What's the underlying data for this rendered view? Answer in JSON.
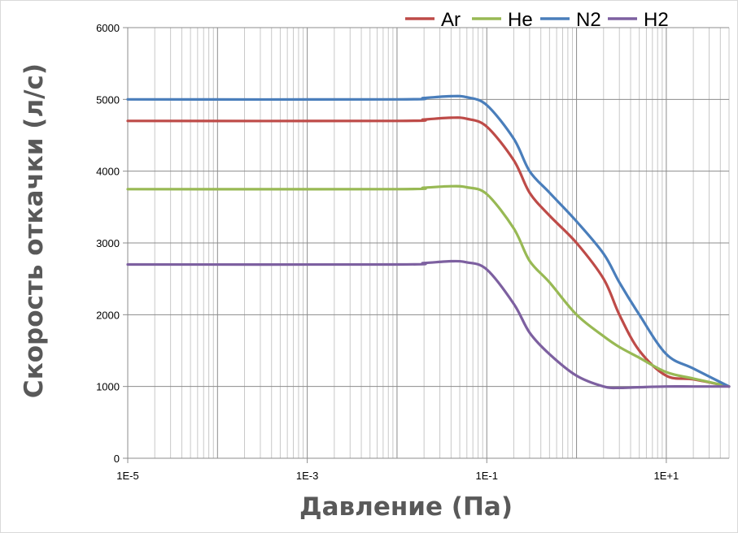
{
  "chart_data": {
    "type": "line",
    "xlabel": "Давление  (Па)",
    "ylabel": "Скорость откачки (л/с)",
    "x_scale": "log",
    "xlim": [
      1e-05,
      50
    ],
    "ylim": [
      0,
      6000
    ],
    "x_ticks": [
      {
        "value": 1e-05,
        "label": "1E-5"
      },
      {
        "value": 0.001,
        "label": "1E-3"
      },
      {
        "value": 0.1,
        "label": "1E-1"
      },
      {
        "value": 10,
        "label": "1E+1"
      }
    ],
    "y_ticks": [
      0,
      1000,
      2000,
      3000,
      4000,
      5000,
      6000
    ],
    "grid": {
      "horizontal": true,
      "vertical_minor_log": true
    },
    "legend_position": "top-right",
    "series": [
      {
        "name": "Ar",
        "color": "#be4b48",
        "x": [
          1e-05,
          0.01,
          0.02,
          0.04,
          0.06,
          0.1,
          0.2,
          0.3,
          0.5,
          1,
          2,
          3,
          5,
          10,
          20,
          50
        ],
        "y": [
          4700,
          4700,
          4720,
          4745,
          4730,
          4620,
          4150,
          3700,
          3380,
          3000,
          2500,
          2000,
          1500,
          1150,
          1100,
          1000
        ]
      },
      {
        "name": "He",
        "color": "#98b954",
        "x": [
          1e-05,
          0.01,
          0.02,
          0.04,
          0.06,
          0.1,
          0.2,
          0.3,
          0.5,
          1,
          2,
          3,
          5,
          10,
          20,
          50
        ],
        "y": [
          3750,
          3750,
          3770,
          3790,
          3775,
          3680,
          3200,
          2750,
          2450,
          2000,
          1700,
          1550,
          1400,
          1200,
          1110,
          1000
        ]
      },
      {
        "name": "N2",
        "color": "#4a7ebb",
        "x": [
          1e-05,
          0.01,
          0.02,
          0.04,
          0.06,
          0.1,
          0.2,
          0.3,
          0.5,
          1,
          2,
          3,
          5,
          10,
          20,
          50
        ],
        "y": [
          5000,
          5000,
          5020,
          5045,
          5030,
          4920,
          4450,
          4000,
          3700,
          3300,
          2850,
          2450,
          2000,
          1450,
          1250,
          1000
        ]
      },
      {
        "name": "H2",
        "color": "#7d60a0",
        "x": [
          1e-05,
          0.01,
          0.02,
          0.04,
          0.06,
          0.1,
          0.2,
          0.3,
          0.5,
          1,
          2,
          3,
          5,
          10,
          20,
          50
        ],
        "y": [
          2700,
          2700,
          2720,
          2745,
          2730,
          2630,
          2150,
          1750,
          1450,
          1150,
          1000,
          980,
          990,
          1000,
          1000,
          1000
        ]
      }
    ]
  }
}
